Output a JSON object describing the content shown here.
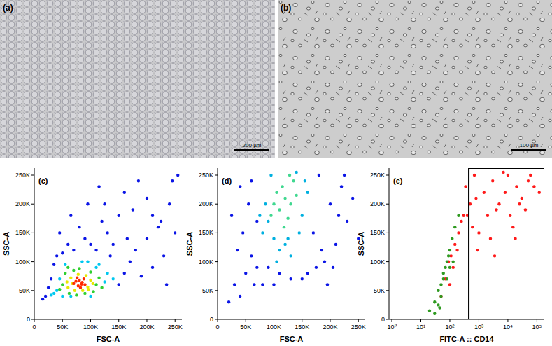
{
  "images": [
    {
      "label": "(a)",
      "scale_bar": "200 µm"
    },
    {
      "label": "(b)",
      "scale_bar": "100 µm"
    }
  ],
  "chart_data": [
    {
      "type": "scatter",
      "label": "(c)",
      "x_label": "FSC-A",
      "y_label": "SSC-A",
      "xlim": [
        0,
        262144
      ],
      "ylim": [
        0,
        262144
      ],
      "xticks": [
        0,
        {
          "value": 50000,
          "label": "50K"
        },
        {
          "value": 100000,
          "label": "100K"
        },
        {
          "value": 150000,
          "label": "150K"
        },
        {
          "value": 200000,
          "label": "200K"
        },
        {
          "value": 250000,
          "label": "250K"
        }
      ],
      "yticks": [
        0,
        {
          "value": 50000,
          "label": "50K"
        },
        {
          "value": 100000,
          "label": "100K"
        },
        {
          "value": 150000,
          "label": "150K"
        },
        {
          "value": 200000,
          "label": "200K"
        },
        {
          "value": 250000,
          "label": "250K"
        }
      ],
      "series": [
        {
          "color": "#0a14e6",
          "x": [
            20000,
            25000,
            30000,
            35000,
            40000,
            150000,
            160000,
            170000,
            180000,
            190000,
            200000,
            210000,
            220000,
            230000,
            240000,
            250000,
            140000,
            130000,
            120000,
            110000,
            100000,
            90000,
            80000,
            70000,
            60000,
            50000,
            45000,
            150000,
            175000,
            200000,
            225000,
            245000,
            160000,
            185000,
            210000,
            125000,
            95000,
            115000,
            65000,
            235000,
            255000,
            15000,
            135000,
            165000
          ],
          "values": [
            40000,
            55000,
            70000,
            95000,
            110000,
            60000,
            80000,
            100000,
            120000,
            75000,
            140000,
            90000,
            160000,
            110000,
            200000,
            150000,
            130000,
            150000,
            170000,
            120000,
            130000,
            140000,
            160000,
            120000,
            130000,
            115000,
            150000,
            180000,
            190000,
            210000,
            170000,
            240000,
            220000,
            240000,
            180000,
            200000,
            200000,
            230000,
            180000,
            60000,
            250000,
            35000,
            110000,
            140000
          ]
        },
        {
          "color": "#00c8f0",
          "x": [
            40000,
            45000,
            125000,
            130000,
            55000,
            110000,
            85000,
            35000,
            140000,
            65000,
            95000,
            115000,
            50000,
            30000,
            100000
          ],
          "values": [
            50000,
            70000,
            65000,
            80000,
            95000,
            90000,
            100000,
            45000,
            70000,
            40000,
            100000,
            95000,
            40000,
            42000,
            40000
          ]
        },
        {
          "color": "#30d030",
          "x": [
            50000,
            55000,
            110000,
            115000,
            62000,
            100000,
            70000,
            90000,
            45000,
            120000,
            80000,
            60000,
            105000,
            75000
          ],
          "values": [
            60000,
            80000,
            60000,
            72000,
            45000,
            82000,
            85000,
            45000,
            52000,
            55000,
            88000,
            90000,
            48000,
            42000
          ]
        },
        {
          "color": "#e8e800",
          "x": [
            60000,
            65000,
            95000,
            100000,
            72000,
            92000,
            68000,
            86000,
            104000,
            58000,
            78000,
            96000
          ],
          "values": [
            55000,
            72000,
            56000,
            68000,
            50000,
            76000,
            62000,
            50000,
            62000,
            65000,
            78000,
            52000
          ]
        },
        {
          "color": "#ff2a00",
          "x": [
            70000,
            78000,
            85000,
            80000,
            90000,
            74000,
            82000,
            88000,
            76000,
            84000
          ],
          "values": [
            62000,
            58000,
            64000,
            68000,
            60000,
            66000,
            55000,
            70000,
            72000,
            61000
          ]
        }
      ]
    },
    {
      "type": "scatter",
      "label": "(d)",
      "x_label": "FSC-A",
      "y_label": "SSC-A",
      "xlim": [
        0,
        262144
      ],
      "ylim": [
        0,
        262144
      ],
      "xticks": [
        0,
        {
          "value": 50000,
          "label": "50K"
        },
        {
          "value": 100000,
          "label": "100K"
        },
        {
          "value": 150000,
          "label": "150K"
        },
        {
          "value": 200000,
          "label": "200K"
        },
        {
          "value": 250000,
          "label": "250K"
        }
      ],
      "yticks": [
        0,
        {
          "value": 50000,
          "label": "50K"
        },
        {
          "value": 100000,
          "label": "100K"
        },
        {
          "value": 150000,
          "label": "150K"
        },
        {
          "value": 200000,
          "label": "200K"
        },
        {
          "value": 250000,
          "label": "250K"
        }
      ],
      "series": [
        {
          "color": "#0a14e6",
          "x": [
            20000,
            30000,
            40000,
            50000,
            60000,
            70000,
            45000,
            55000,
            65000,
            35000,
            170000,
            180000,
            190000,
            200000,
            210000,
            220000,
            230000,
            240000,
            250000,
            175000,
            195000,
            215000,
            160000,
            150000,
            60000,
            90000,
            80000,
            40000,
            100000,
            110000,
            185000,
            205000,
            225000,
            130000,
            70000,
            25000
          ],
          "values": [
            30000,
            60000,
            40000,
            80000,
            110000,
            90000,
            150000,
            200000,
            60000,
            120000,
            150000,
            250000,
            100000,
            200000,
            130000,
            230000,
            170000,
            210000,
            140000,
            90000,
            60000,
            180000,
            80000,
            70000,
            240000,
            90000,
            60000,
            230000,
            60000,
            80000,
            120000,
            90000,
            250000,
            70000,
            170000,
            180000
          ]
        },
        {
          "color": "#00b0e0",
          "x": [
            80000,
            90000,
            100000,
            150000,
            160000,
            85000,
            110000,
            145000,
            120000,
            95000,
            140000,
            130000,
            75000,
            155000,
            105000,
            125000
          ],
          "values": [
            150000,
            170000,
            140000,
            180000,
            220000,
            200000,
            120000,
            150000,
            130000,
            250000,
            255000,
            110000,
            180000,
            240000,
            100000,
            140000
          ]
        },
        {
          "color": "#40d890",
          "x": [
            100000,
            110000,
            120000,
            130000,
            115000,
            125000,
            105000,
            135000,
            95000,
            140000,
            118000,
            128000
          ],
          "values": [
            200000,
            190000,
            210000,
            200000,
            230000,
            175000,
            220000,
            240000,
            180000,
            215000,
            160000,
            250000
          ]
        }
      ]
    },
    {
      "type": "scatter",
      "label": "(e)",
      "x_label": "FITC-A :: CD14",
      "y_label": "SSC-A",
      "log": "x",
      "xlim": [
        0.8,
        180000
      ],
      "ylim": [
        0,
        262144
      ],
      "gate": 450,
      "xticks": [
        {
          "value": 1,
          "label": "10⁰"
        },
        {
          "value": 10,
          "label": "10¹"
        },
        {
          "value": 100,
          "label": "10²"
        },
        {
          "value": 1000,
          "label": "10³"
        },
        {
          "value": 10000,
          "label": "10⁴"
        },
        {
          "value": 100000,
          "label": "10⁵"
        }
      ],
      "yticks": [
        0,
        {
          "value": 50000,
          "label": "50K"
        },
        {
          "value": 100000,
          "label": "100K"
        },
        {
          "value": 150000,
          "label": "150K"
        },
        {
          "value": 200000,
          "label": "200K"
        },
        {
          "value": 250000,
          "label": "250K"
        }
      ],
      "series": [
        {
          "color": "#ff1a1a",
          "x": [
            50,
            70,
            90,
            110,
            150,
            200,
            250,
            300,
            500,
            800,
            1000,
            2000,
            3000,
            5000,
            8000,
            10000,
            20000,
            30000,
            50000,
            80000,
            600,
            1500,
            4000,
            12000,
            25000,
            60000,
            700,
            2500,
            7000,
            15000,
            40000,
            900,
            3500,
            18000,
            100,
            130,
            180,
            400,
            350,
            120000
          ],
          "values": [
            40000,
            70000,
            100000,
            110000,
            130000,
            150000,
            170000,
            180000,
            200000,
            210000,
            150000,
            180000,
            240000,
            200000,
            220000,
            250000,
            230000,
            210000,
            240000,
            230000,
            160000,
            220000,
            190000,
            180000,
            200000,
            250000,
            250000,
            140000,
            255000,
            160000,
            190000,
            120000,
            110000,
            140000,
            60000,
            90000,
            120000,
            180000,
            230000,
            220000
          ]
        },
        {
          "color": "#2f9a20",
          "x": [
            20,
            30,
            40,
            50,
            60,
            70,
            80,
            100,
            120,
            40,
            50,
            60,
            80,
            100,
            150,
            30,
            45,
            90,
            130,
            200
          ],
          "values": [
            15000,
            30000,
            50000,
            60000,
            80000,
            90000,
            100000,
            120000,
            140000,
            25000,
            40000,
            70000,
            70000,
            90000,
            160000,
            10000,
            20000,
            110000,
            100000,
            180000
          ]
        }
      ]
    }
  ]
}
